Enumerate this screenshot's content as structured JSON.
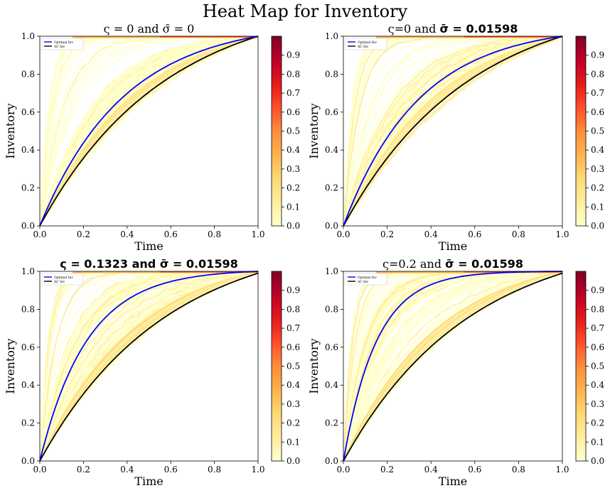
{
  "figure_title": "Heat Map for Inventory",
  "colors": {
    "optimal": "#0000ff",
    "ac": "#000000",
    "colormap": [
      "#ffffcc",
      "#ffeda0",
      "#fed976",
      "#feb24c",
      "#fd8d3c",
      "#fc4e2a",
      "#e31a1c",
      "#bd0026",
      "#800026"
    ]
  },
  "chart_data": [
    {
      "type": "heatmap",
      "title_prefix": "ς = 0 and ",
      "title_sym": "σ̄",
      "title_suffix": " = 0",
      "title_bold": false,
      "xlabel": "Time",
      "ylabel": "Inventory",
      "xlim": [
        0,
        1
      ],
      "ylim": [
        0,
        1
      ],
      "xticks": [
        "0.0",
        "0.2",
        "0.4",
        "0.6",
        "0.8",
        "1.0"
      ],
      "yticks": [
        "0.0",
        "0.2",
        "0.4",
        "0.6",
        "0.8",
        "1.0"
      ],
      "legend": [
        "Optimal Inv",
        "AC Inv"
      ],
      "legend_position": "upper-left",
      "colorbar_ticks": [
        "0.0",
        "0.1",
        "0.2",
        "0.3",
        "0.4",
        "0.5",
        "0.6",
        "0.7",
        "0.8",
        "0.9"
      ],
      "colorbar_range": [
        0,
        1
      ],
      "optimal_rate": 2.6,
      "ac_rate": 1.75,
      "x": [
        0,
        0.1,
        0.2,
        0.3,
        0.4,
        0.5,
        0.6,
        0.7,
        0.8,
        0.9,
        1.0
      ],
      "series": [
        {
          "name": "Optimal Inv",
          "values": [
            0.0,
            0.28,
            0.48,
            0.62,
            0.73,
            0.81,
            0.87,
            0.91,
            0.95,
            0.98,
            1.0
          ]
        },
        {
          "name": "AC Inv",
          "values": [
            0.0,
            0.23,
            0.41,
            0.55,
            0.66,
            0.75,
            0.83,
            0.89,
            0.94,
            0.97,
            1.0
          ]
        }
      ]
    },
    {
      "type": "heatmap",
      "title_prefix": "ς=0 and ",
      "title_sym": "σ̄",
      "title_suffix": " = 0.01598",
      "title_bold": true,
      "xlabel": "Time",
      "ylabel": "Inventory",
      "xlim": [
        0,
        1
      ],
      "ylim": [
        0,
        1
      ],
      "xticks": [
        "0.0",
        "0.2",
        "0.4",
        "0.6",
        "0.8",
        "1.0"
      ],
      "yticks": [
        "0.0",
        "0.2",
        "0.4",
        "0.6",
        "0.8",
        "1.0"
      ],
      "legend": [
        "Optimal Inv",
        "AC Inv"
      ],
      "legend_position": "upper-left",
      "colorbar_ticks": [
        "0.0",
        "0.1",
        "0.2",
        "0.3",
        "0.4",
        "0.5",
        "0.6",
        "0.7",
        "0.8",
        "0.9"
      ],
      "colorbar_range": [
        0,
        1
      ],
      "optimal_rate": 2.9,
      "ac_rate": 1.75,
      "x": [
        0,
        0.1,
        0.2,
        0.3,
        0.4,
        0.5,
        0.6,
        0.7,
        0.8,
        0.9,
        1.0
      ],
      "series": [
        {
          "name": "Optimal Inv",
          "values": [
            0.0,
            0.31,
            0.52,
            0.67,
            0.77,
            0.85,
            0.9,
            0.94,
            0.97,
            0.99,
            1.0
          ]
        },
        {
          "name": "AC Inv",
          "values": [
            0.0,
            0.23,
            0.41,
            0.55,
            0.66,
            0.75,
            0.83,
            0.89,
            0.94,
            0.97,
            1.0
          ]
        }
      ]
    },
    {
      "type": "heatmap",
      "title_prefix": "ς = 0.1323 and ",
      "title_sym": "σ̄",
      "title_suffix": " = 0.01598",
      "title_bold": true,
      "xlabel": "Time",
      "ylabel": "Inventory",
      "xlim": [
        0,
        1
      ],
      "ylim": [
        0,
        1
      ],
      "xticks": [
        "0.0",
        "0.2",
        "0.4",
        "0.6",
        "0.8",
        "1.0"
      ],
      "yticks": [
        "0.0",
        "0.2",
        "0.4",
        "0.6",
        "0.8",
        "1.0"
      ],
      "legend": [
        "Optimal Inv",
        "AC Inv"
      ],
      "legend_position": "upper-left",
      "colorbar_ticks": [
        "0.0",
        "0.1",
        "0.2",
        "0.3",
        "0.4",
        "0.5",
        "0.6",
        "0.7",
        "0.8",
        "0.9"
      ],
      "colorbar_range": [
        0,
        1
      ],
      "optimal_rate": 4.6,
      "ac_rate": 1.75,
      "x": [
        0,
        0.1,
        0.2,
        0.3,
        0.4,
        0.5,
        0.6,
        0.7,
        0.8,
        0.9,
        1.0
      ],
      "series": [
        {
          "name": "Optimal Inv",
          "values": [
            0.0,
            0.42,
            0.65,
            0.78,
            0.86,
            0.91,
            0.94,
            0.96,
            0.98,
            0.99,
            1.0
          ]
        },
        {
          "name": "AC Inv",
          "values": [
            0.0,
            0.23,
            0.41,
            0.55,
            0.66,
            0.75,
            0.83,
            0.89,
            0.94,
            0.97,
            0.99
          ]
        }
      ]
    },
    {
      "type": "heatmap",
      "title_prefix": "ς=0.2 and ",
      "title_sym": "σ̄",
      "title_suffix": " = 0.01598",
      "title_bold": true,
      "xlabel": "Time",
      "ylabel": "Inventory",
      "xlim": [
        0,
        1
      ],
      "ylim": [
        0,
        1
      ],
      "xticks": [
        "0.0",
        "0.2",
        "0.4",
        "0.6",
        "0.8",
        "1.0"
      ],
      "yticks": [
        "0.0",
        "0.2",
        "0.4",
        "0.6",
        "0.8",
        "1.0"
      ],
      "legend": [
        "Optimal Inv",
        "AC Inv"
      ],
      "legend_position": "upper-left",
      "colorbar_ticks": [
        "0.0",
        "0.1",
        "0.2",
        "0.3",
        "0.4",
        "0.5",
        "0.6",
        "0.7",
        "0.8",
        "0.9"
      ],
      "colorbar_range": [
        0,
        1
      ],
      "optimal_rate": 6.6,
      "ac_rate": 1.75,
      "x": [
        0,
        0.1,
        0.2,
        0.3,
        0.4,
        0.5,
        0.6,
        0.7,
        0.8,
        0.9,
        1.0
      ],
      "series": [
        {
          "name": "Optimal Inv",
          "values": [
            0.0,
            0.55,
            0.77,
            0.87,
            0.92,
            0.95,
            0.97,
            0.98,
            0.99,
            0.995,
            1.0
          ]
        },
        {
          "name": "AC Inv",
          "values": [
            0.0,
            0.23,
            0.41,
            0.55,
            0.66,
            0.75,
            0.83,
            0.89,
            0.94,
            0.97,
            0.99
          ]
        }
      ]
    }
  ]
}
